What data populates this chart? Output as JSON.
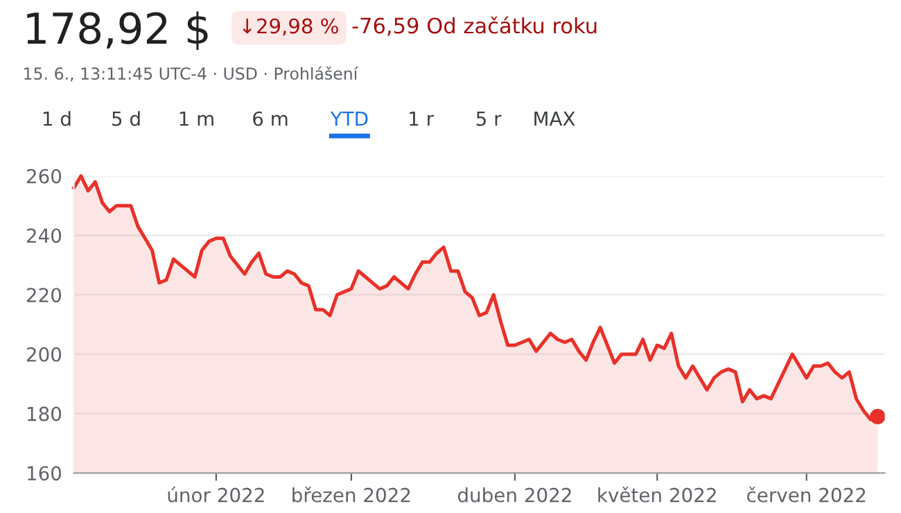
{
  "chart_data": {
    "type": "area",
    "title": "178,92 $",
    "subtitle": "15. 6., 13:11:45 UTC-4 · USD · Prohlášení",
    "annotations": [
      "↓29,98 %",
      "-76,59 Od začátku roku",
      "1 d",
      "5 d",
      "1 m",
      "6 m",
      "YTD",
      "1 r",
      "5 r",
      "MAX"
    ],
    "categories": [
      null,
      null,
      null,
      null,
      null,
      null,
      null,
      null,
      null,
      null,
      null,
      null,
      null,
      null,
      null,
      null,
      null,
      null,
      null,
      null,
      "únor 2022",
      null,
      null,
      null,
      null,
      null,
      null,
      null,
      null,
      null,
      null,
      null,
      null,
      null,
      null,
      null,
      null,
      null,
      null,
      "březen 2022",
      null,
      null,
      null,
      null,
      null,
      null,
      null,
      null,
      null,
      null,
      null,
      null,
      null,
      null,
      null,
      null,
      null,
      null,
      null,
      null,
      null,
      null,
      "duben 2022",
      null,
      null,
      null,
      null,
      null,
      null,
      null,
      null,
      null,
      null,
      null,
      null,
      null,
      null,
      null,
      null,
      null,
      null,
      null,
      "květen 2022",
      null,
      null,
      null,
      null,
      null,
      null,
      null,
      null,
      null,
      null,
      null,
      null,
      null,
      null,
      null,
      null,
      null,
      null,
      null,
      null,
      "červen 2022",
      null,
      null,
      null,
      null,
      null,
      null,
      null,
      null,
      null,
      null
    ],
    "series": [
      {
        "color": "#e8312a",
        "values": [
          256,
          260,
          255,
          258,
          251,
          248,
          250,
          250,
          250,
          243,
          239,
          235,
          224,
          225,
          232,
          230,
          228,
          226,
          235,
          238,
          239,
          239,
          233,
          230,
          227,
          231,
          234,
          227,
          226,
          226,
          228,
          227,
          224,
          223,
          215,
          215,
          213,
          220,
          221,
          222,
          228,
          226,
          224,
          222,
          223,
          226,
          224,
          222,
          227,
          231,
          231,
          234,
          236,
          228,
          228,
          221,
          219,
          213,
          214,
          220,
          211,
          203,
          203,
          204,
          205,
          201,
          204,
          207,
          205,
          204,
          205,
          201,
          198,
          204,
          209,
          203,
          197,
          200,
          200,
          200,
          205,
          198,
          203,
          202,
          207,
          196,
          192,
          196,
          192,
          188,
          192,
          194,
          195,
          194,
          184,
          188,
          185,
          186,
          185,
          190,
          195,
          200,
          196,
          192,
          196,
          196,
          197,
          194,
          192,
          194,
          185,
          181,
          178,
          179
        ]
      },
      {
        "type": "scatter",
        "color": "#e8312a",
        "marker": "circle",
        "values": [
          null,
          null,
          null,
          null,
          null,
          null,
          null,
          null,
          null,
          null,
          null,
          null,
          null,
          null,
          null,
          null,
          null,
          null,
          null,
          null,
          null,
          null,
          null,
          null,
          null,
          null,
          null,
          null,
          null,
          null,
          null,
          null,
          null,
          null,
          null,
          null,
          null,
          null,
          null,
          null,
          null,
          null,
          null,
          null,
          null,
          null,
          null,
          null,
          null,
          null,
          null,
          null,
          null,
          null,
          null,
          null,
          null,
          null,
          null,
          null,
          null,
          null,
          null,
          null,
          null,
          null,
          null,
          null,
          null,
          null,
          null,
          null,
          null,
          null,
          null,
          null,
          null,
          null,
          null,
          null,
          null,
          null,
          null,
          null,
          null,
          null,
          null,
          null,
          null,
          null,
          null,
          null,
          null,
          null,
          null,
          null,
          null,
          null,
          null,
          null,
          null,
          null,
          null,
          null,
          null,
          null,
          null,
          null,
          null,
          null,
          null,
          null,
          null,
          179
        ]
      }
    ],
    "ylim": [
      160,
      260
    ],
    "yticks": [
      160,
      180,
      200,
      220,
      240,
      260
    ],
    "grid": "y"
  }
}
